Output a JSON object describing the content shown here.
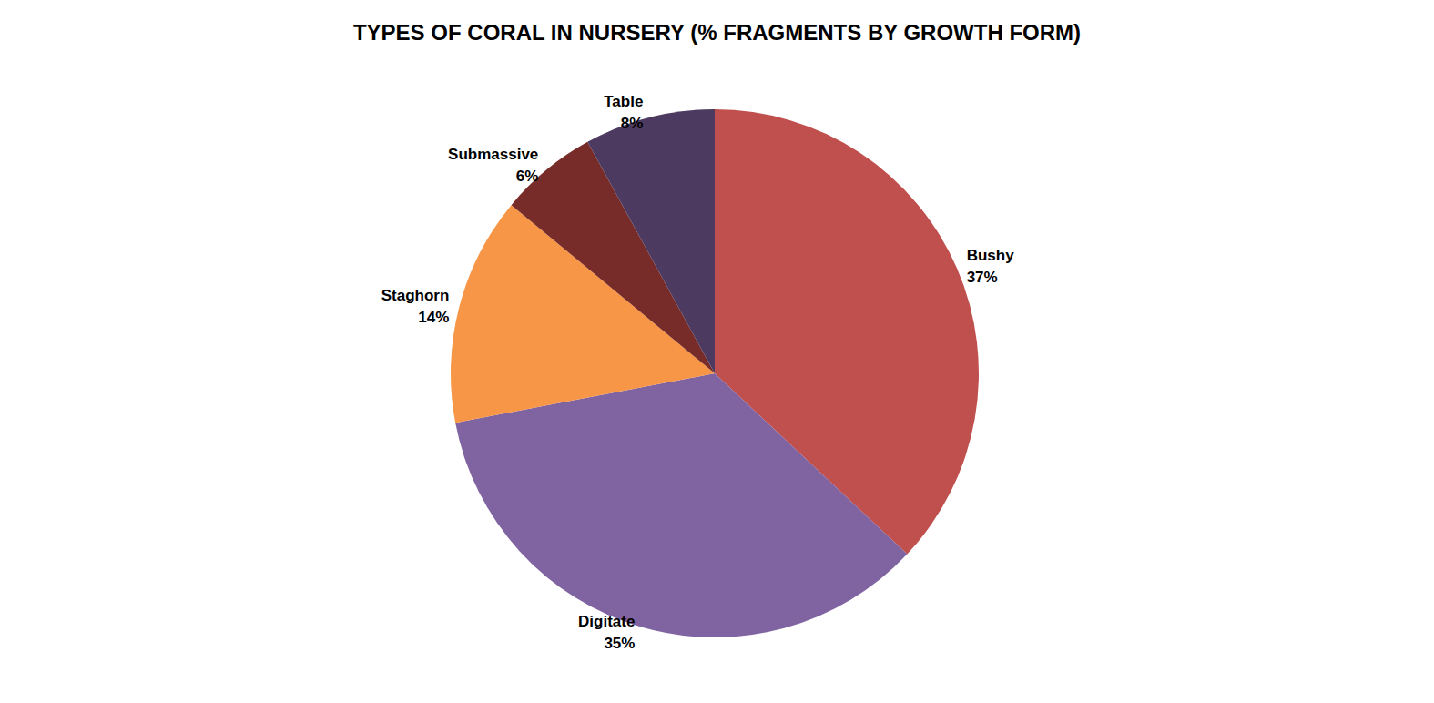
{
  "chart_data": {
    "type": "pie",
    "title": "TYPES OF CORAL IN NURSERY (% FRAGMENTS BY GROWTH FORM)",
    "categories": [
      "Bushy",
      "Digitate",
      "Staghorn",
      "Submassive",
      "Table"
    ],
    "values": [
      37,
      35,
      14,
      6,
      8
    ],
    "value_labels": [
      "37%",
      "35%",
      "14%",
      "6%",
      "8%"
    ],
    "colors": [
      "#c0504d",
      "#8064a2",
      "#f79646",
      "#772c2a",
      "#4d3a60"
    ],
    "data_labels": true
  }
}
